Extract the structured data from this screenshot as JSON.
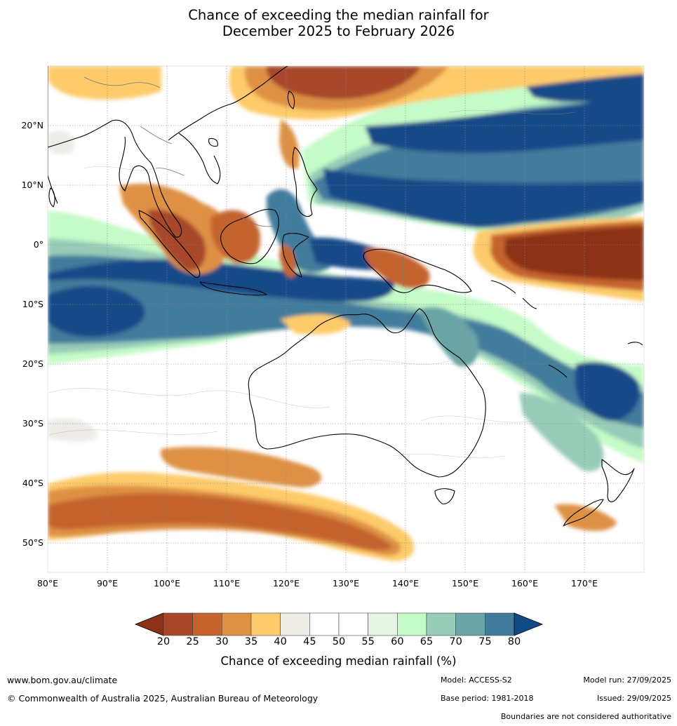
{
  "title": {
    "line1": "Chance of exceeding the median rainfall for",
    "line2": "December 2025 to February 2026"
  },
  "map": {
    "region": "Australia, Indian Ocean and western Pacific",
    "lon_ticks": [
      "80°E",
      "90°E",
      "100°E",
      "110°E",
      "120°E",
      "130°E",
      "140°E",
      "150°E",
      "160°E",
      "170°E"
    ],
    "lat_ticks": [
      "20°N",
      "10°N",
      "0°",
      "10°S",
      "20°S",
      "30°S",
      "40°S",
      "50°S"
    ],
    "lon_range": [
      80,
      180
    ],
    "lat_range": [
      -55,
      30
    ]
  },
  "colorbar": {
    "label": "Chance of exceeding median rainfall (%)",
    "ticks": [
      "20",
      "25",
      "30",
      "35",
      "40",
      "45",
      "50",
      "55",
      "60",
      "65",
      "70",
      "75",
      "80"
    ],
    "colors": [
      "#8c3117",
      "#a8472a",
      "#c5632f",
      "#de9144",
      "#fdcb6b",
      "#eeece6",
      "#ffffff",
      "#ffffff",
      "#e6f4e6",
      "#c5fbc8",
      "#98ccb8",
      "#6aa4a6",
      "#427c9c",
      "#124a88"
    ],
    "extend": "both"
  },
  "footer": {
    "website": "www.bom.gov.au/climate",
    "copyright": "© Commonwealth of Australia 2025, Australian Bureau of Meteorology",
    "model": "Model: ACCESS-S2",
    "base_period": "Base period: 1981-2018",
    "model_run": "Model run: 27/09/2025",
    "issued": "Issued: 29/09/2025",
    "boundaries_note": "Boundaries are not considered authoritative"
  }
}
